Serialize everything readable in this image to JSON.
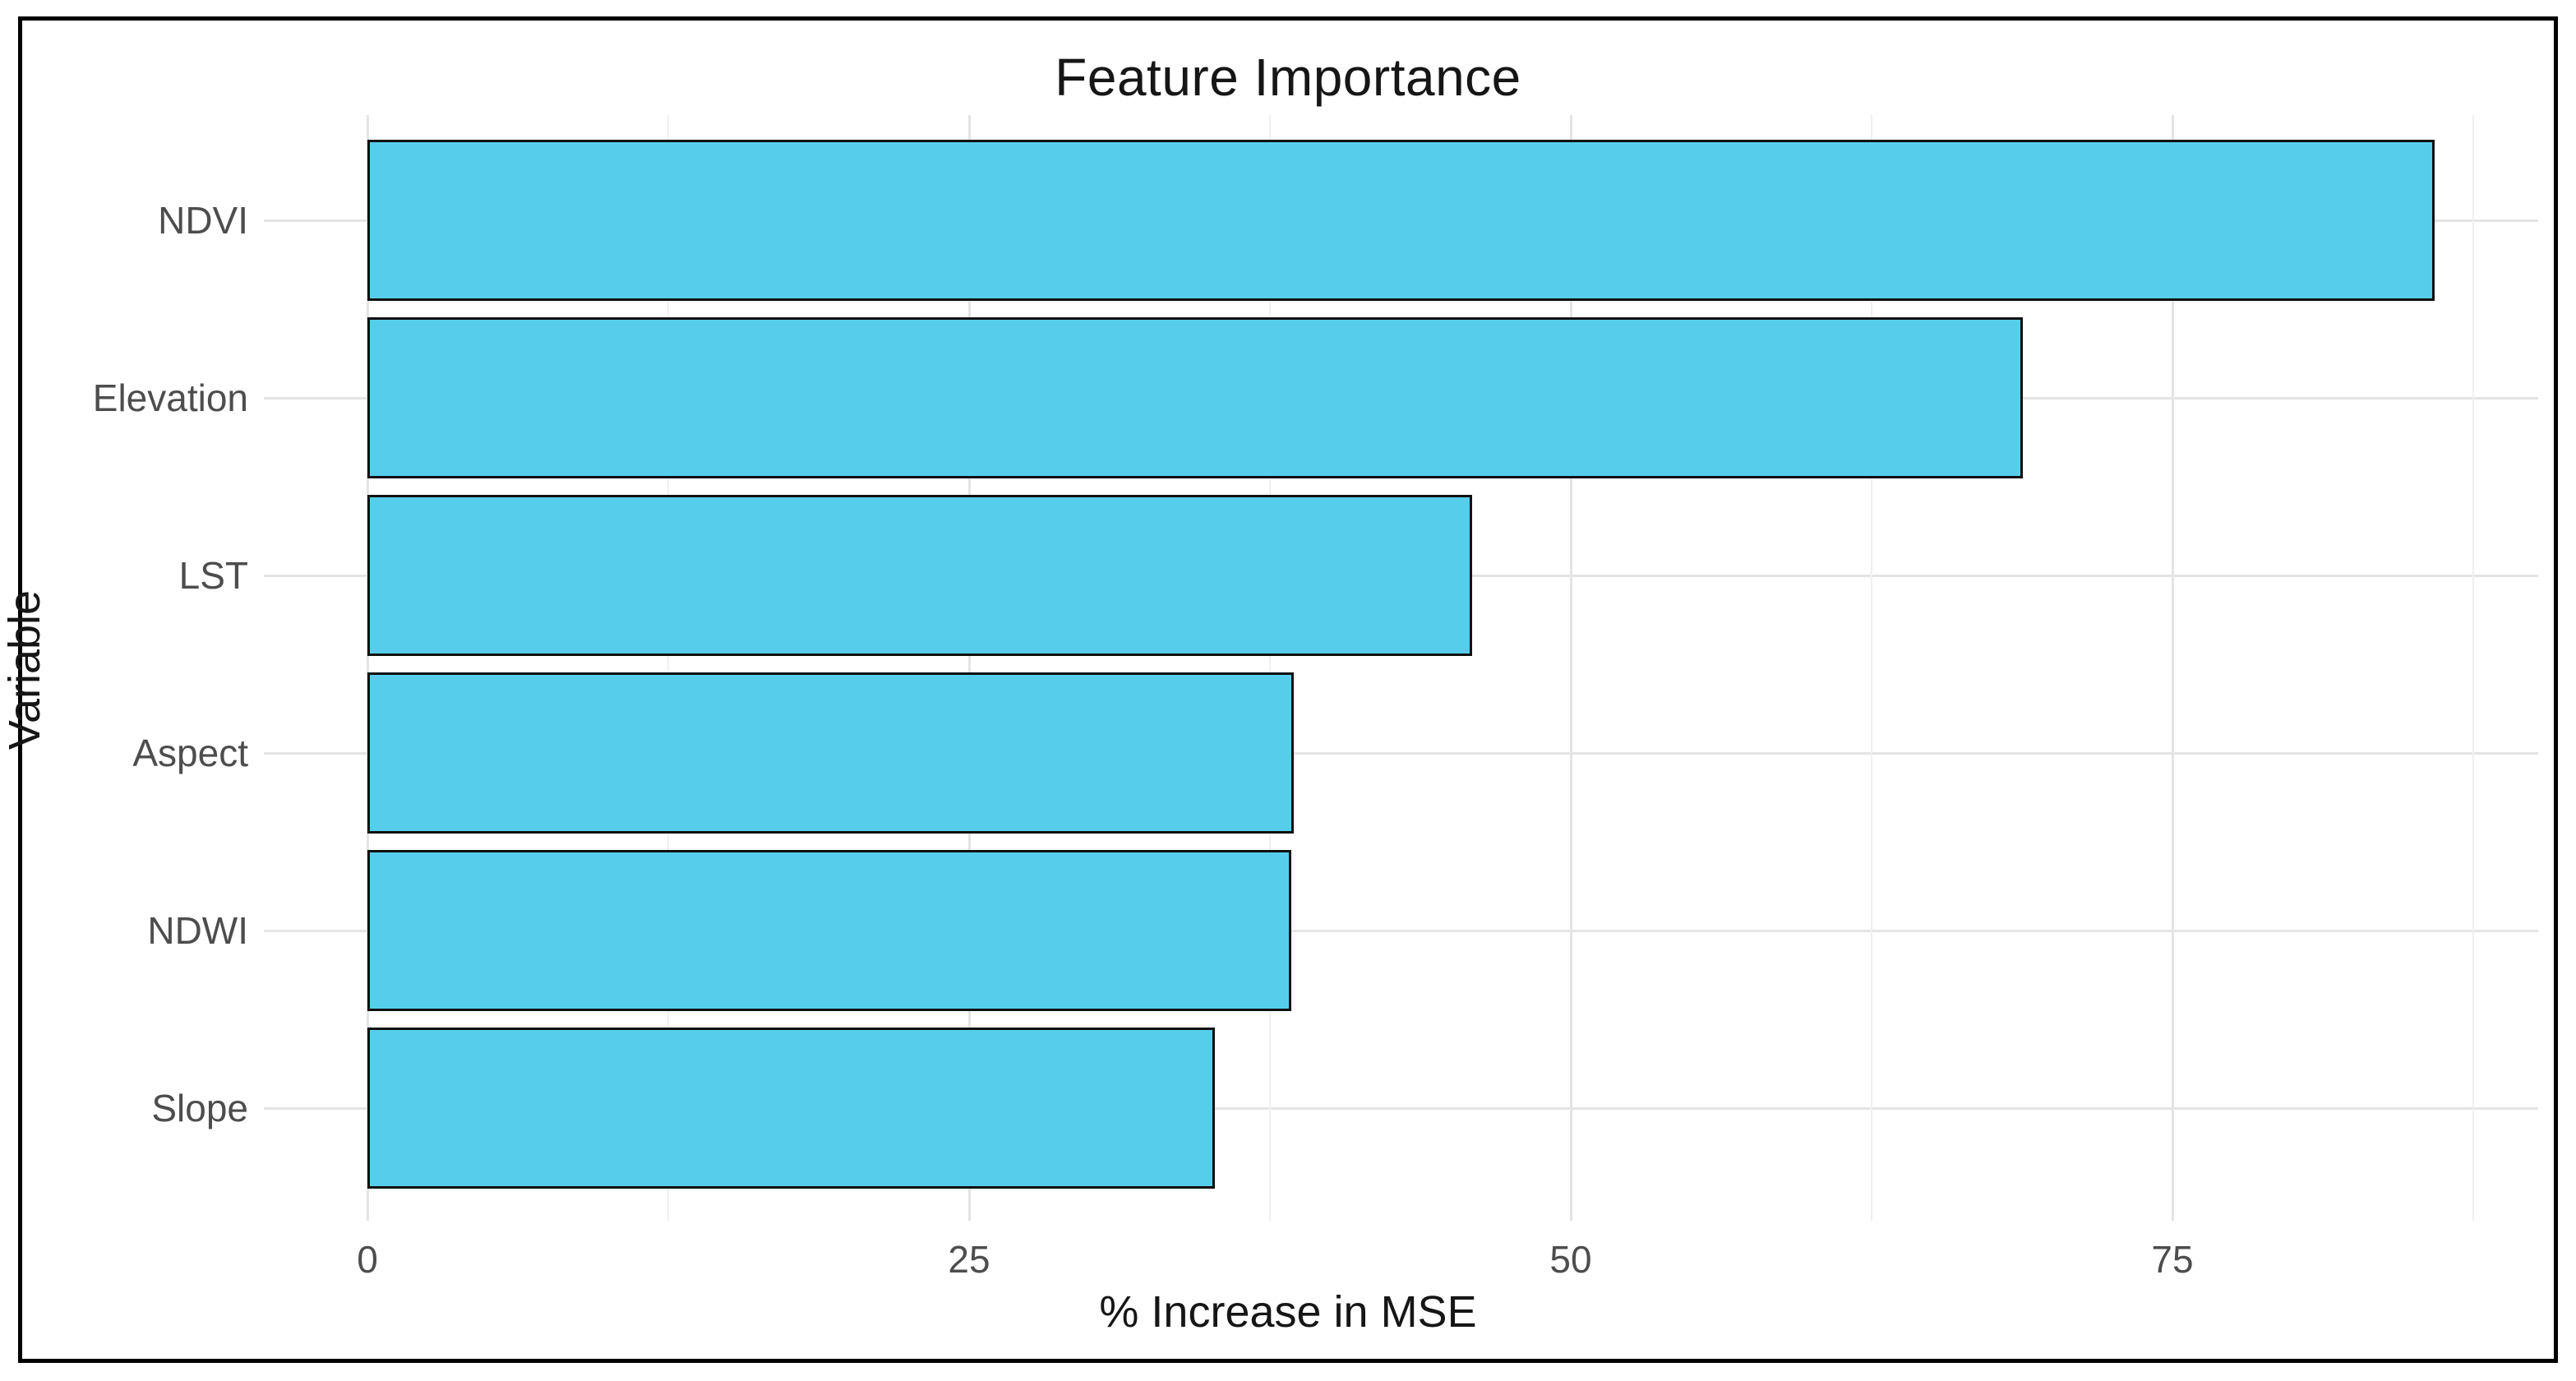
{
  "figure": {
    "background_color": "#ffffff",
    "frame_color": "#000000"
  },
  "chart_data": {
    "type": "bar",
    "orientation": "horizontal",
    "title": "Feature Importance",
    "xlabel": "% Increase in MSE",
    "ylabel": "Variable",
    "categories": [
      "NDVI",
      "Elevation",
      "LST",
      "Aspect",
      "NDWI",
      "Slope"
    ],
    "values": [
      85.9,
      68.8,
      45.9,
      38.5,
      38.4,
      35.2
    ],
    "x_major_ticks": [
      0,
      25,
      50,
      75
    ],
    "x_major_tick_labels": [
      "0",
      "25",
      "50",
      "75"
    ],
    "x_minor_ticks": [
      12.5,
      37.5,
      62.5,
      87.5
    ],
    "xlim": [
      -4.3,
      90.2
    ],
    "grid": "major-and-minor, no tick marks (minimal theme)",
    "legend": "none",
    "colors": {
      "bar_fill": "#56CEEB",
      "bar_border": "#101010",
      "grid_major": "#e4e4e4",
      "grid_minor": "#f0f0f0",
      "tick_label": "#4d4d4d",
      "axis_title": "#161616",
      "title": "#161616"
    }
  }
}
